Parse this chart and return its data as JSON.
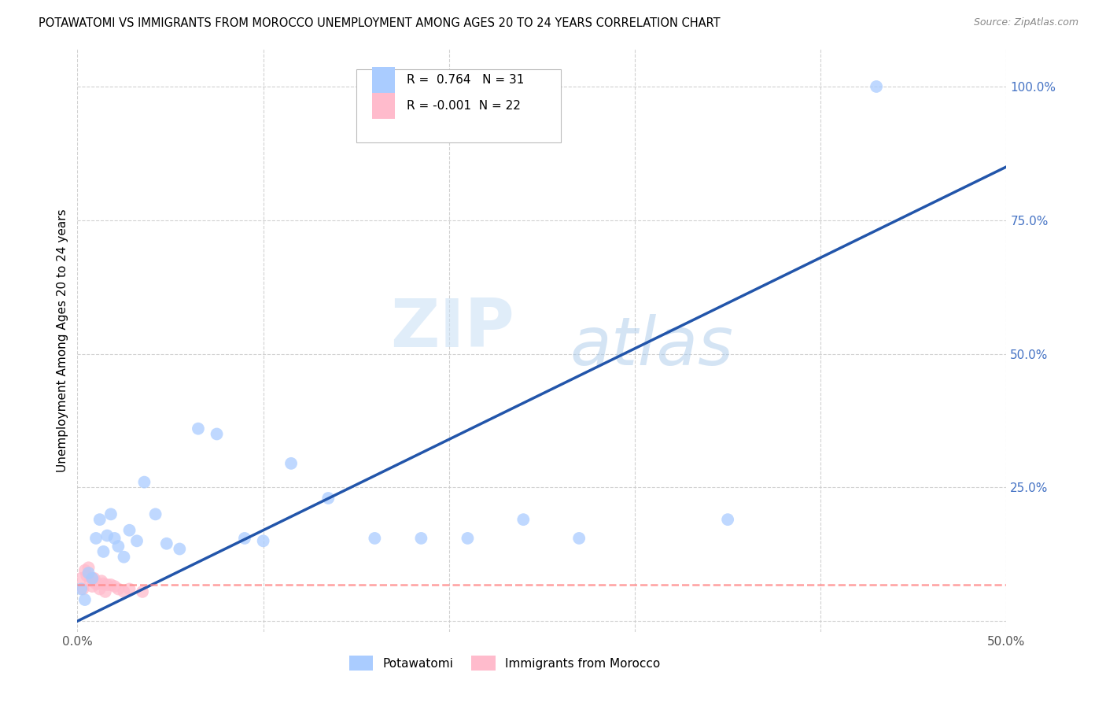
{
  "title": "POTAWATOMI VS IMMIGRANTS FROM MOROCCO UNEMPLOYMENT AMONG AGES 20 TO 24 YEARS CORRELATION CHART",
  "source": "Source: ZipAtlas.com",
  "ylabel": "Unemployment Among Ages 20 to 24 years",
  "xlim": [
    0,
    0.5
  ],
  "ylim": [
    -0.02,
    1.07
  ],
  "xticks": [
    0.0,
    0.1,
    0.2,
    0.3,
    0.4,
    0.5
  ],
  "xticklabels": [
    "0.0%",
    "",
    "",
    "",
    "",
    "50.0%"
  ],
  "ytick_positions": [
    0.0,
    0.25,
    0.5,
    0.75,
    1.0
  ],
  "ytick_labels": [
    "",
    "25.0%",
    "50.0%",
    "75.0%",
    "100.0%"
  ],
  "grid_color": "#cccccc",
  "background_color": "#ffffff",
  "watermark_zip": "ZIP",
  "watermark_atlas": "atlas",
  "potawatomi_color": "#aaccff",
  "morocco_color": "#ffbbcc",
  "line_blue_color": "#2255aa",
  "line_pink_color": "#ff8888",
  "R_potawatomi": 0.764,
  "N_potawatomi": 31,
  "R_morocco": -0.001,
  "N_morocco": 22,
  "potawatomi_x": [
    0.002,
    0.004,
    0.006,
    0.008,
    0.01,
    0.012,
    0.014,
    0.016,
    0.018,
    0.02,
    0.022,
    0.025,
    0.028,
    0.032,
    0.036,
    0.042,
    0.048,
    0.055,
    0.065,
    0.075,
    0.09,
    0.1,
    0.115,
    0.135,
    0.16,
    0.185,
    0.21,
    0.24,
    0.27,
    0.35,
    0.43
  ],
  "potawatomi_y": [
    0.06,
    0.04,
    0.09,
    0.08,
    0.155,
    0.19,
    0.13,
    0.16,
    0.2,
    0.155,
    0.14,
    0.12,
    0.17,
    0.15,
    0.26,
    0.2,
    0.145,
    0.135,
    0.36,
    0.35,
    0.155,
    0.15,
    0.295,
    0.23,
    0.155,
    0.155,
    0.155,
    0.19,
    0.155,
    0.19,
    1.0
  ],
  "morocco_x": [
    0.002,
    0.003,
    0.004,
    0.005,
    0.006,
    0.007,
    0.008,
    0.008,
    0.009,
    0.01,
    0.011,
    0.012,
    0.013,
    0.014,
    0.015,
    0.016,
    0.018,
    0.02,
    0.022,
    0.025,
    0.028,
    0.035
  ],
  "morocco_y": [
    0.08,
    0.06,
    0.095,
    0.085,
    0.1,
    0.075,
    0.065,
    0.08,
    0.08,
    0.07,
    0.07,
    0.06,
    0.075,
    0.07,
    0.055,
    0.068,
    0.068,
    0.065,
    0.06,
    0.055,
    0.06,
    0.055
  ],
  "legend_label_blue": "Potawatomi",
  "legend_label_pink": "Immigrants from Morocco",
  "marker_size": 130,
  "blue_line_x0": 0.0,
  "blue_line_y0": 0.0,
  "blue_line_x1": 0.5,
  "blue_line_y1": 0.85,
  "pink_line_y": 0.068
}
